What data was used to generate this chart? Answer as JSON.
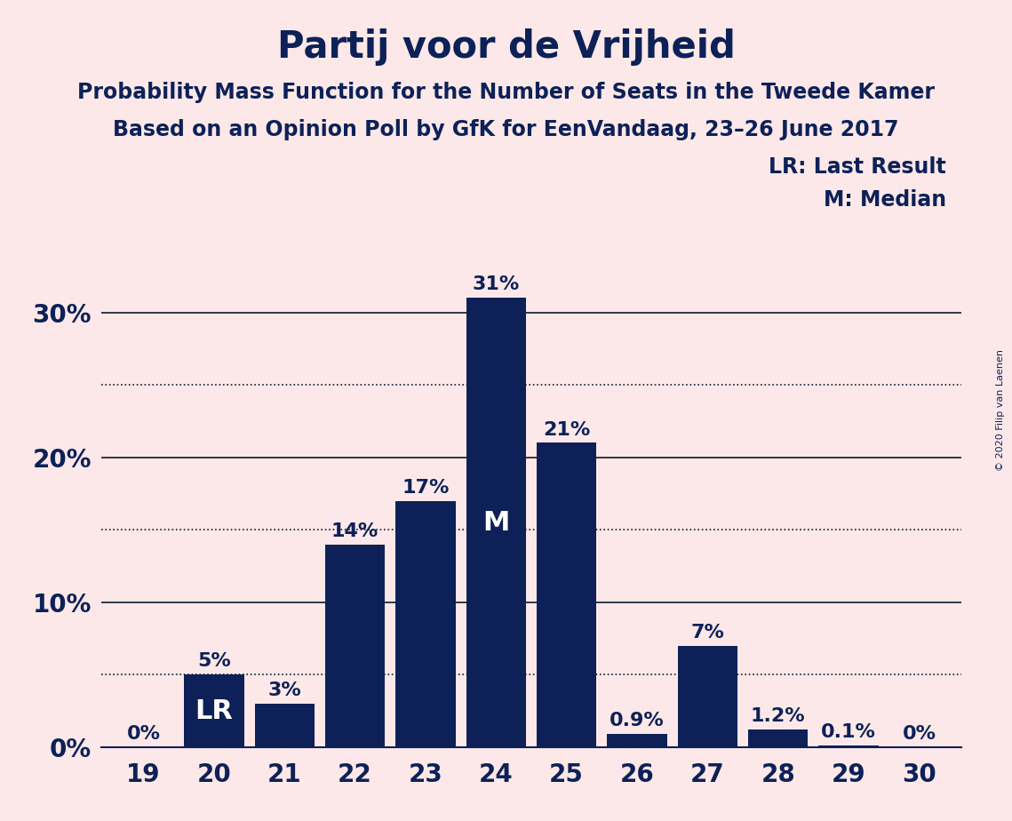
{
  "title": "Partij voor de Vrijheid",
  "subtitle1": "Probability Mass Function for the Number of Seats in the Tweede Kamer",
  "subtitle2": "Based on an Opinion Poll by GfK for EenVandaag, 23–26 June 2017",
  "copyright": "© 2020 Filip van Laenen",
  "seats": [
    19,
    20,
    21,
    22,
    23,
    24,
    25,
    26,
    27,
    28,
    29,
    30
  ],
  "probabilities": [
    0.0,
    5.0,
    3.0,
    14.0,
    17.0,
    31.0,
    21.0,
    0.9,
    7.0,
    1.2,
    0.1,
    0.0
  ],
  "bar_labels": [
    "0%",
    "5%",
    "3%",
    "14%",
    "17%",
    "31%",
    "21%",
    "0.9%",
    "7%",
    "1.2%",
    "0.1%",
    "0%"
  ],
  "bar_color": "#0d2158",
  "background_color": "#fce8e8",
  "lr_seat": 20,
  "median_seat": 24,
  "legend_lr": "LR: Last Result",
  "legend_m": "M: Median",
  "yticks": [
    0,
    10,
    20,
    30
  ],
  "ytick_labels": [
    "0%",
    "10%",
    "20%",
    "30%"
  ],
  "ylim": [
    0,
    34
  ],
  "dotted_lines": [
    5,
    15,
    25
  ],
  "title_fontsize": 30,
  "subtitle_fontsize": 17,
  "tick_fontsize": 20,
  "legend_fontsize": 17,
  "bar_label_fontsize": 16,
  "annotation_fontsize": 22
}
